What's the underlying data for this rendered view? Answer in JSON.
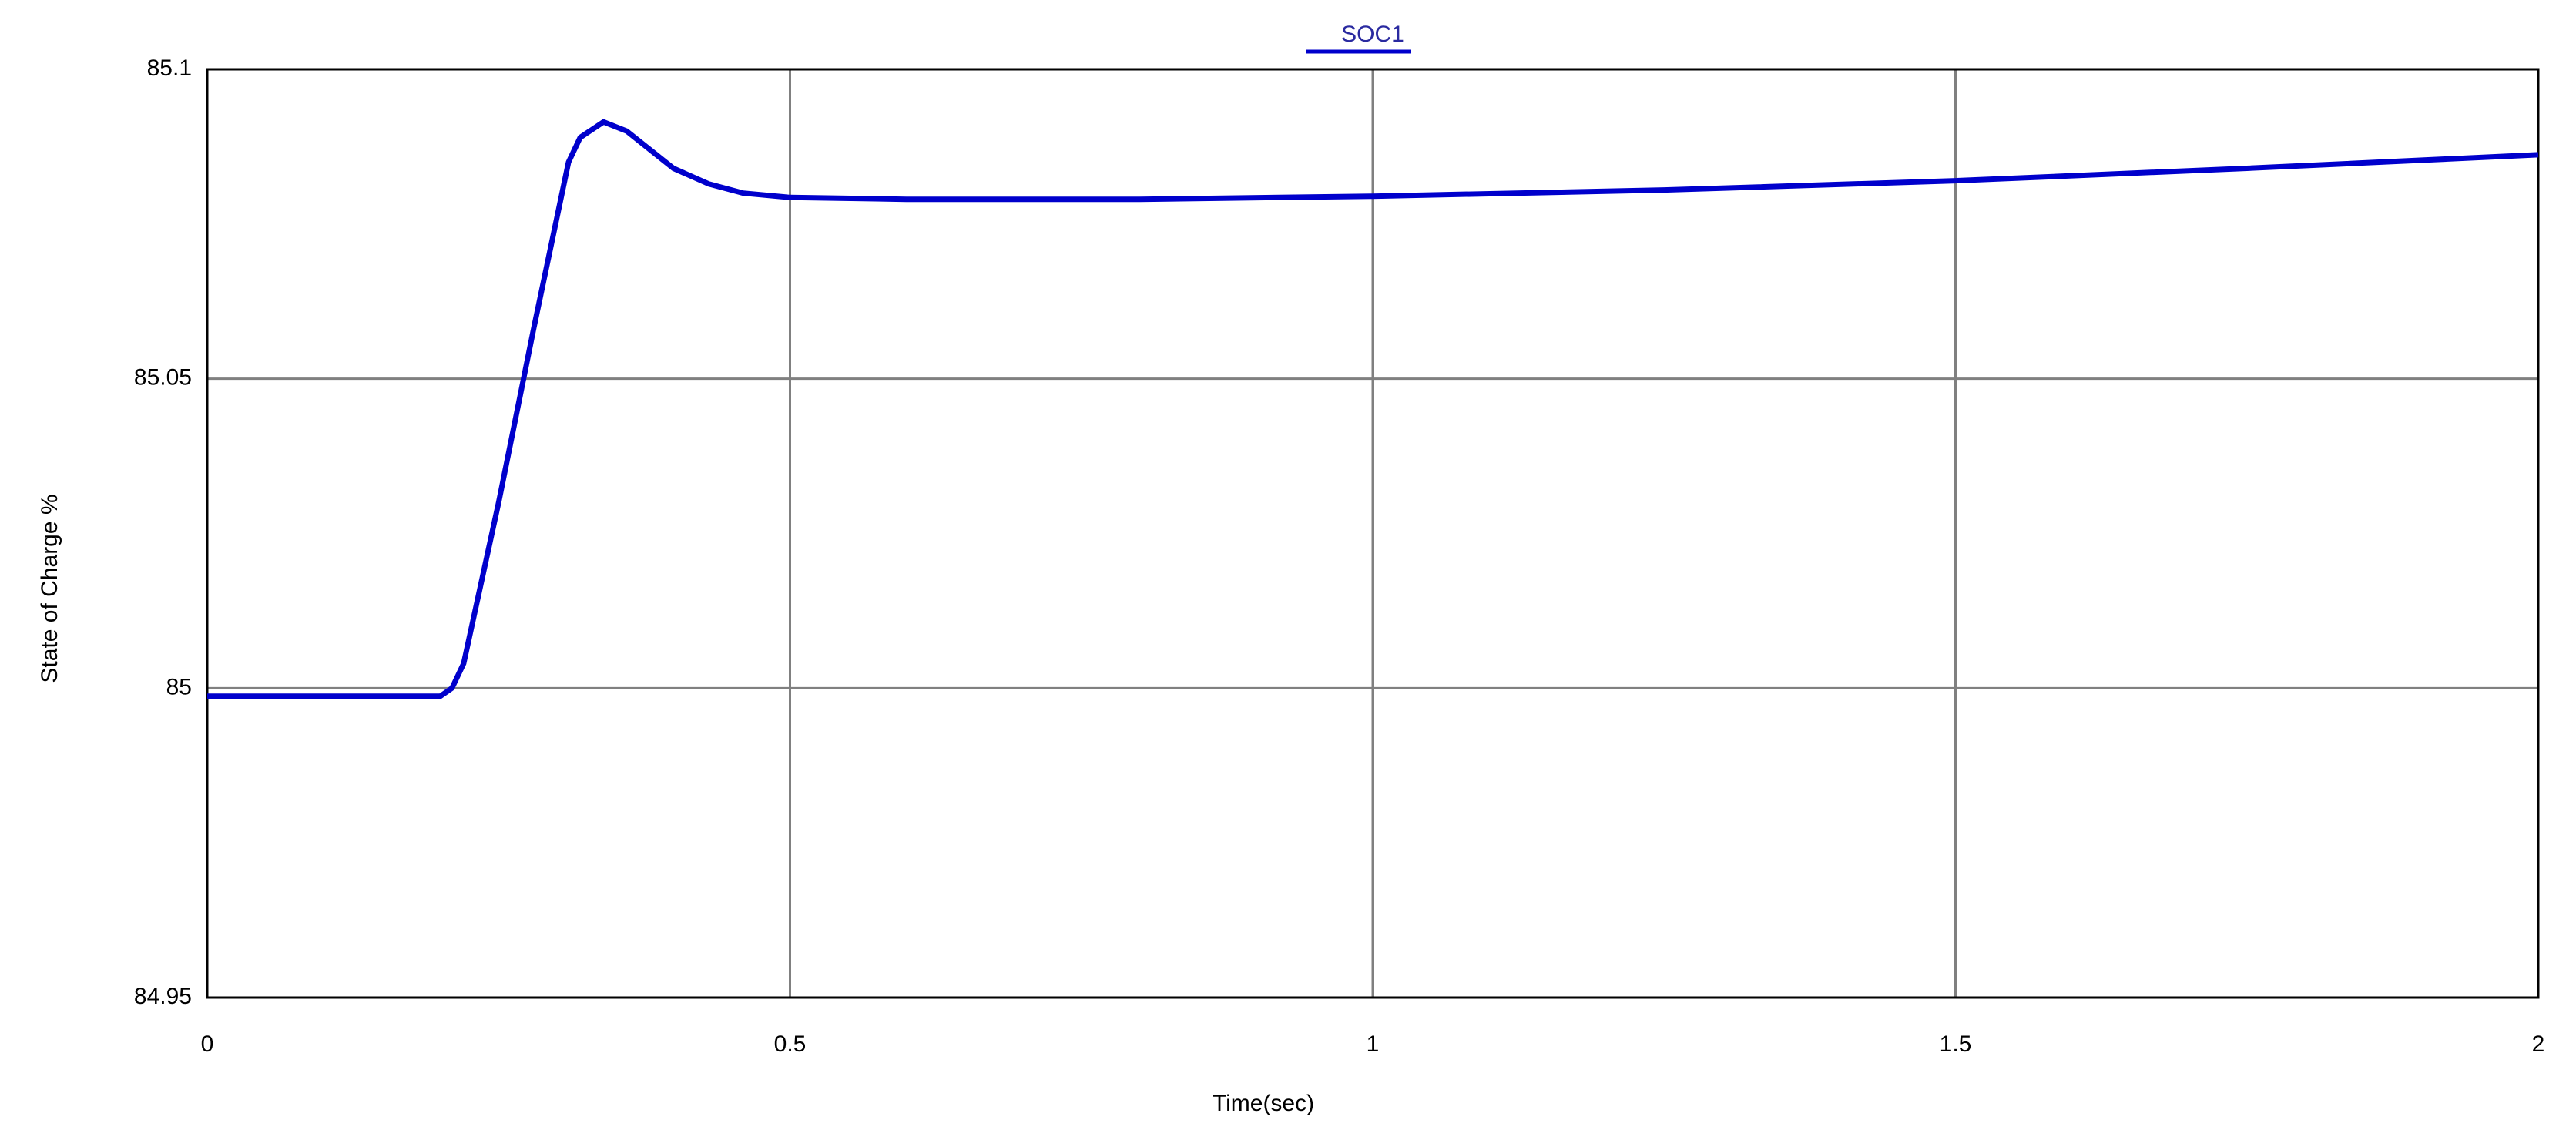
{
  "chart_data": {
    "type": "line",
    "title": "SOC1",
    "xlabel": "Time(sec)",
    "ylabel": "State of Charge %",
    "series": [
      {
        "name": "SOC1",
        "color": "#0000cc",
        "x": [
          0,
          0.1,
          0.2,
          0.21,
          0.22,
          0.25,
          0.28,
          0.31,
          0.32,
          0.34,
          0.36,
          0.38,
          0.4,
          0.43,
          0.46,
          0.5,
          0.6,
          0.8,
          1.0,
          1.25,
          1.5,
          1.75,
          2.0
        ],
        "values": [
          84.9987,
          84.9987,
          84.9987,
          85.0,
          85.004,
          85.03,
          85.058,
          85.085,
          85.089,
          85.0915,
          85.09,
          85.087,
          85.084,
          85.0815,
          85.08,
          85.0793,
          85.079,
          85.079,
          85.0795,
          85.0805,
          85.082,
          85.084,
          85.0862
        ]
      }
    ],
    "xlim": [
      0,
      2
    ],
    "xticks": [
      0,
      0.5,
      1,
      1.5,
      2
    ],
    "ylim": [
      84.95,
      85.1
    ],
    "yticks": [
      84.95,
      85,
      85.05,
      85.1
    ],
    "grid": true
  }
}
